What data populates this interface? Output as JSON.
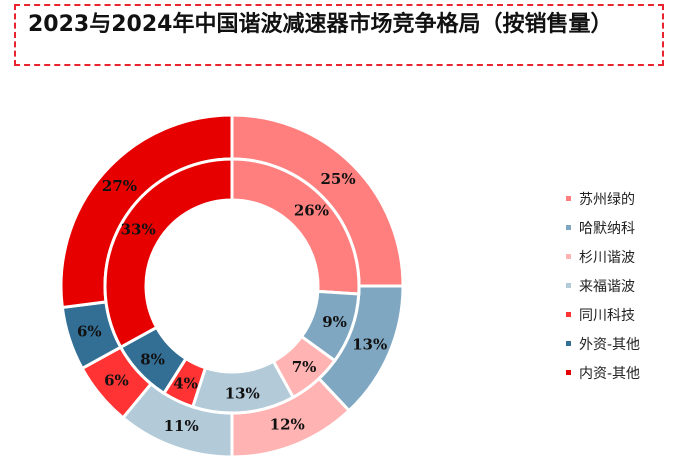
{
  "title": "2023与2024年中国谐波减速器市场竞争格局（按销售量）",
  "chart_data": {
    "type": "pie",
    "series": [
      {
        "name": "2024",
        "values": [
          25,
          13,
          12,
          11,
          6,
          6,
          27
        ]
      },
      {
        "name": "2023",
        "values": [
          26,
          9,
          7,
          13,
          4,
          8,
          33
        ]
      }
    ],
    "categories": [
      "苏州绿的",
      "哈默纳科",
      "杉川谐波",
      "来福谐波",
      "同川科技",
      "外资-其他",
      "内资-其他"
    ],
    "colors": [
      "#ff7f7f",
      "#7fa7c2",
      "#ffb3b3",
      "#b3cad9",
      "#ff3333",
      "#336f94",
      "#e60000"
    ],
    "labels": [
      [
        "25%",
        "13%",
        "12%",
        "11%",
        "6%",
        "6%",
        "27%"
      ],
      [
        "26%",
        "9%",
        "7%",
        "13%",
        "4%",
        "8%",
        "33%"
      ]
    ],
    "legend": [
      "苏州绿的",
      "哈默纳科",
      "杉川谐波",
      "来福谐波",
      "同川科技",
      "外资-其他",
      "内资-其他"
    ],
    "legend_position": "right"
  }
}
